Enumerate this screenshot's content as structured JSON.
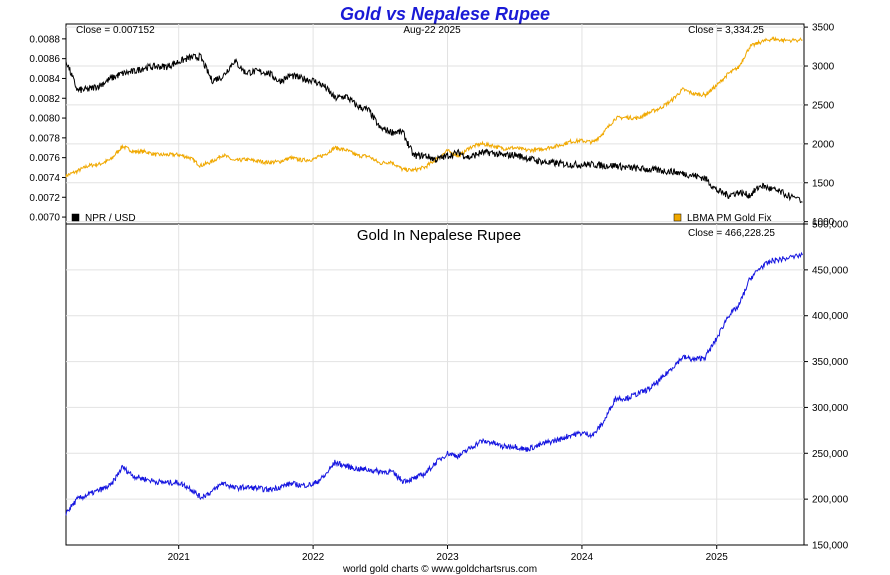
{
  "header": {
    "title": "Gold vs Nepalese Rupee",
    "date": "Aug-22  2025",
    "footer": "world gold charts © www.goldchartsrus.com"
  },
  "colors": {
    "title": "#1a1ad6",
    "npr_series": "#000000",
    "gold_series": "#f0a800",
    "gold_in_npr_series": "#1616e0"
  },
  "chart_data": [
    {
      "type": "line",
      "panel": "top",
      "x_ticks": [
        "2021",
        "2022",
        "2023",
        "2024",
        "2025"
      ],
      "annotations": {
        "left_close": "Close = 0.007152",
        "right_close": "Close = 3,334.25"
      },
      "y_left": {
        "ticks": [
          "0.0088",
          "0.0086",
          "0.0084",
          "0.0082",
          "0.0080",
          "0.0078",
          "0.0076",
          "0.0074",
          "0.0072",
          "0.0070"
        ],
        "range": [
          0.00693,
          0.00895
        ]
      },
      "y_right": {
        "ticks": [
          "3500",
          "3000",
          "2500",
          "2000",
          "1500",
          "1000"
        ],
        "range": [
          970,
          3540
        ]
      },
      "grid": true,
      "legend": [
        {
          "label": "NPR / USD",
          "color": "#000000",
          "position": "bottom-left"
        },
        {
          "label": "LBMA PM Gold Fix",
          "color": "#f0a800",
          "position": "bottom-right"
        }
      ],
      "series": [
        {
          "name": "NPR / USD",
          "axis": "left",
          "x": [
            "2020-03-01",
            "2020-04-01",
            "2020-05-01",
            "2020-06-01",
            "2020-07-01",
            "2020-08-01",
            "2020-09-01",
            "2020-10-01",
            "2020-11-01",
            "2020-12-01",
            "2021-01-01",
            "2021-02-01",
            "2021-03-01",
            "2021-04-01",
            "2021-05-01",
            "2021-06-01",
            "2021-07-01",
            "2021-08-01",
            "2021-09-01",
            "2021-10-01",
            "2021-11-01",
            "2021-12-01",
            "2022-01-01",
            "2022-02-01",
            "2022-03-01",
            "2022-04-01",
            "2022-05-01",
            "2022-06-01",
            "2022-07-01",
            "2022-08-01",
            "2022-09-01",
            "2022-10-01",
            "2022-11-01",
            "2022-12-01",
            "2023-01-01",
            "2023-02-01",
            "2023-03-01",
            "2023-04-01",
            "2023-05-01",
            "2023-06-01",
            "2023-07-01",
            "2023-08-01",
            "2023-09-01",
            "2023-10-01",
            "2023-11-01",
            "2023-12-01",
            "2024-01-01",
            "2024-02-01",
            "2024-03-01",
            "2024-04-01",
            "2024-05-01",
            "2024-06-01",
            "2024-07-01",
            "2024-08-01",
            "2024-09-01",
            "2024-10-01",
            "2024-11-01",
            "2024-12-01",
            "2025-01-01",
            "2025-02-01",
            "2025-03-01",
            "2025-04-01",
            "2025-05-01",
            "2025-06-01",
            "2025-07-01",
            "2025-08-22"
          ],
          "y": [
            0.00858,
            0.00828,
            0.00829,
            0.00833,
            0.0084,
            0.00845,
            0.00847,
            0.00851,
            0.00852,
            0.00852,
            0.00857,
            0.00861,
            0.00862,
            0.00838,
            0.00842,
            0.00858,
            0.00846,
            0.00847,
            0.00846,
            0.00837,
            0.00843,
            0.0084,
            0.00838,
            0.00832,
            0.0082,
            0.00822,
            0.00812,
            0.00808,
            0.0079,
            0.00786,
            0.00786,
            0.00762,
            0.00762,
            0.00758,
            0.00762,
            0.00765,
            0.0076,
            0.00765,
            0.00765,
            0.00762,
            0.00763,
            0.0076,
            0.00757,
            0.00755,
            0.00754,
            0.00753,
            0.00753,
            0.00753,
            0.00752,
            0.00752,
            0.0075,
            0.00749,
            0.00748,
            0.00747,
            0.00746,
            0.00744,
            0.00742,
            0.00739,
            0.00727,
            0.00722,
            0.00725,
            0.00722,
            0.00732,
            0.00728,
            0.00724,
            0.00715
          ]
        },
        {
          "name": "LBMA PM Gold Fix",
          "axis": "right",
          "x": [
            "2020-03-01",
            "2020-04-01",
            "2020-05-01",
            "2020-06-01",
            "2020-07-01",
            "2020-08-01",
            "2020-09-01",
            "2020-10-01",
            "2020-11-01",
            "2020-12-01",
            "2021-01-01",
            "2021-02-01",
            "2021-03-01",
            "2021-04-01",
            "2021-05-01",
            "2021-06-01",
            "2021-07-01",
            "2021-08-01",
            "2021-09-01",
            "2021-10-01",
            "2021-11-01",
            "2021-12-01",
            "2022-01-01",
            "2022-02-01",
            "2022-03-01",
            "2022-04-01",
            "2022-05-01",
            "2022-06-01",
            "2022-07-01",
            "2022-08-01",
            "2022-09-01",
            "2022-10-01",
            "2022-11-01",
            "2022-12-01",
            "2023-01-01",
            "2023-02-01",
            "2023-03-01",
            "2023-04-01",
            "2023-05-01",
            "2023-06-01",
            "2023-07-01",
            "2023-08-01",
            "2023-09-01",
            "2023-10-01",
            "2023-11-01",
            "2023-12-01",
            "2024-01-01",
            "2024-02-01",
            "2024-03-01",
            "2024-04-01",
            "2024-05-01",
            "2024-06-01",
            "2024-07-01",
            "2024-08-01",
            "2024-09-01",
            "2024-10-01",
            "2024-11-01",
            "2024-12-01",
            "2025-01-01",
            "2025-02-01",
            "2025-03-01",
            "2025-04-01",
            "2025-05-01",
            "2025-06-01",
            "2025-07-01",
            "2025-08-22"
          ],
          "y": [
            1590,
            1650,
            1720,
            1740,
            1800,
            1970,
            1900,
            1900,
            1860,
            1860,
            1860,
            1820,
            1720,
            1770,
            1860,
            1780,
            1800,
            1780,
            1760,
            1770,
            1820,
            1790,
            1800,
            1860,
            1950,
            1920,
            1850,
            1840,
            1750,
            1770,
            1670,
            1660,
            1700,
            1800,
            1910,
            1840,
            1950,
            2000,
            1980,
            1940,
            1950,
            1920,
            1920,
            1950,
            1980,
            2030,
            2040,
            2020,
            2150,
            2330,
            2340,
            2330,
            2400,
            2460,
            2560,
            2700,
            2640,
            2630,
            2750,
            2900,
            2980,
            3250,
            3310,
            3350,
            3330,
            3334
          ]
        }
      ]
    },
    {
      "type": "line",
      "panel": "bottom",
      "title": "Gold In Nepalese Rupee",
      "annotations": {
        "right_close": "Close = 466,228.25"
      },
      "x_ticks": [
        "2021",
        "2022",
        "2023",
        "2024",
        "2025"
      ],
      "y_right": {
        "ticks": [
          "500,000",
          "450,000",
          "400,000",
          "350,000",
          "300,000",
          "250,000",
          "200,000",
          "150,000"
        ],
        "range": [
          150000,
          500000
        ]
      },
      "grid": true,
      "series": [
        {
          "name": "Gold In Nepalese Rupee",
          "x": [
            "2020-03-01",
            "2020-04-01",
            "2020-05-01",
            "2020-06-01",
            "2020-07-01",
            "2020-08-01",
            "2020-09-01",
            "2020-10-01",
            "2020-11-01",
            "2020-12-01",
            "2021-01-01",
            "2021-02-01",
            "2021-03-01",
            "2021-04-01",
            "2021-05-01",
            "2021-06-01",
            "2021-07-01",
            "2021-08-01",
            "2021-09-01",
            "2021-10-01",
            "2021-11-01",
            "2021-12-01",
            "2022-01-01",
            "2022-02-01",
            "2022-03-01",
            "2022-04-01",
            "2022-05-01",
            "2022-06-01",
            "2022-07-01",
            "2022-08-01",
            "2022-09-01",
            "2022-10-01",
            "2022-11-01",
            "2022-12-01",
            "2023-01-01",
            "2023-02-01",
            "2023-03-01",
            "2023-04-01",
            "2023-05-01",
            "2023-06-01",
            "2023-07-01",
            "2023-08-01",
            "2023-09-01",
            "2023-10-01",
            "2023-11-01",
            "2023-12-01",
            "2024-01-01",
            "2024-02-01",
            "2024-03-01",
            "2024-04-01",
            "2024-05-01",
            "2024-06-01",
            "2024-07-01",
            "2024-08-01",
            "2024-09-01",
            "2024-10-01",
            "2024-11-01",
            "2024-12-01",
            "2025-01-01",
            "2025-02-01",
            "2025-03-01",
            "2025-04-01",
            "2025-05-01",
            "2025-06-01",
            "2025-07-01",
            "2025-08-22"
          ],
          "y": [
            185000,
            200000,
            205000,
            210000,
            215000,
            235000,
            225000,
            222000,
            219000,
            218000,
            218000,
            212000,
            202000,
            208000,
            218000,
            212000,
            213000,
            212000,
            210000,
            213000,
            217000,
            215000,
            216000,
            225000,
            240000,
            236000,
            233000,
            232000,
            230000,
            230000,
            220000,
            222000,
            228000,
            240000,
            250000,
            247000,
            255000,
            263000,
            262000,
            257000,
            258000,
            254000,
            258000,
            262000,
            265000,
            270000,
            272000,
            270000,
            285000,
            310000,
            310000,
            315000,
            320000,
            330000,
            343000,
            355000,
            352000,
            355000,
            375000,
            400000,
            410000,
            440000,
            453000,
            460000,
            462000,
            466228
          ]
        }
      ]
    }
  ]
}
